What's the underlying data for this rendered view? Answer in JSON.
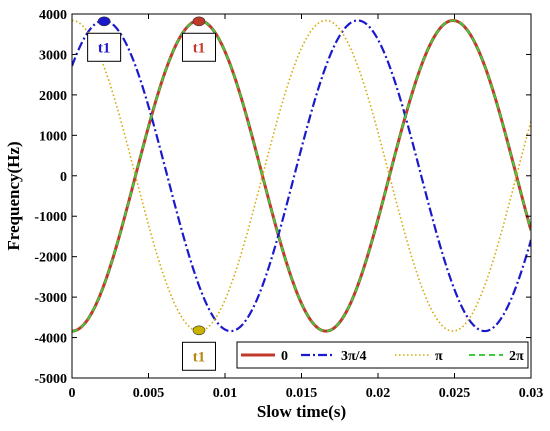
{
  "chart_data": {
    "type": "line",
    "xlabel": "Slow time(s)",
    "ylabel": "Frequency(Hz)",
    "xlim": [
      0,
      0.03
    ],
    "ylim": [
      -5000,
      4000
    ],
    "xticks": [
      0,
      0.005,
      0.01,
      0.015,
      0.02,
      0.025,
      0.03
    ],
    "xtick_labels": [
      "0",
      "0.005",
      "0.01",
      "0.015",
      "0.02",
      "0.025",
      "0.03"
    ],
    "yticks": [
      -5000,
      -4000,
      -3000,
      -2000,
      -1000,
      0,
      1000,
      2000,
      3000,
      4000
    ],
    "ytick_labels": [
      "-5000",
      "-4000",
      "-3000",
      "-2000",
      "-1000",
      "0",
      "1000",
      "2000",
      "3000",
      "4000"
    ],
    "grid": false,
    "legend_position": "bottom-right",
    "model": {
      "amplitude": 3840,
      "period": 0.0166,
      "form": "-A*cos(2*pi*t/T + phase)"
    },
    "series": [
      {
        "name": "0",
        "phase": 0,
        "color": "#c0392b",
        "style": "solid",
        "width": 3
      },
      {
        "name": "3π/4",
        "phase": 2.356,
        "color": "#1a1acc",
        "style": "dashdot",
        "width": 2.2
      },
      {
        "name": "π",
        "phase": 3.1416,
        "color": "#d4aa00",
        "style": "dotted",
        "width": 1.6
      },
      {
        "name": "2π",
        "phase": 6.2832,
        "color": "#3ccc3c",
        "style": "dashed",
        "width": 2
      }
    ],
    "annotations": [
      {
        "text": "t1",
        "x": 0.0021,
        "y": 3820,
        "box_side": "below",
        "color": "#1a1acc",
        "text_color": "#1a1acc"
      },
      {
        "text": "t1",
        "x": 0.0083,
        "y": 3820,
        "box_side": "below",
        "color": "#c0392b",
        "text_color": "#c0392b"
      },
      {
        "text": "t1",
        "x": 0.0083,
        "y": -3820,
        "box_side": "below",
        "color": "#c8b400",
        "text_color": "#b8860b"
      }
    ]
  }
}
